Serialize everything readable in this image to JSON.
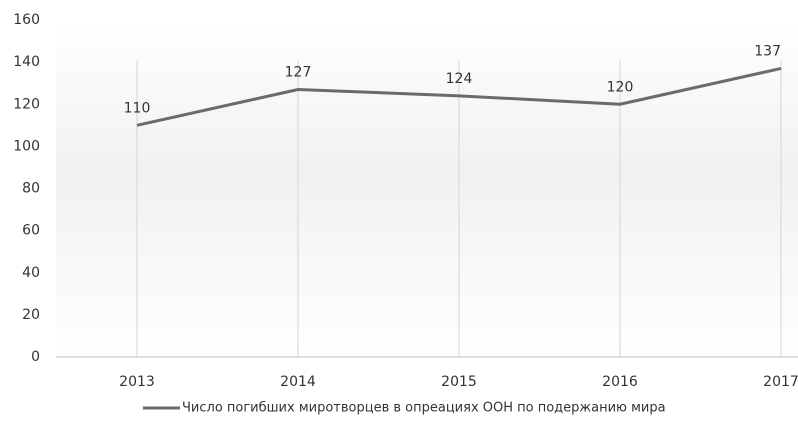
{
  "chart_data": {
    "type": "line",
    "categories": [
      "2013",
      "2014",
      "2015",
      "2016",
      "2017"
    ],
    "series": [
      {
        "name": "Число погибших миротворцев в опреациях ООН по подержанию мира",
        "color": "#6b6b6b",
        "values": [
          110,
          127,
          124,
          120,
          137
        ]
      }
    ],
    "ylim": [
      0,
      160
    ],
    "yticks": [
      0,
      20,
      40,
      60,
      80,
      100,
      120,
      140,
      160
    ],
    "grid": false,
    "data_labels": true,
    "legend": "bottom"
  }
}
